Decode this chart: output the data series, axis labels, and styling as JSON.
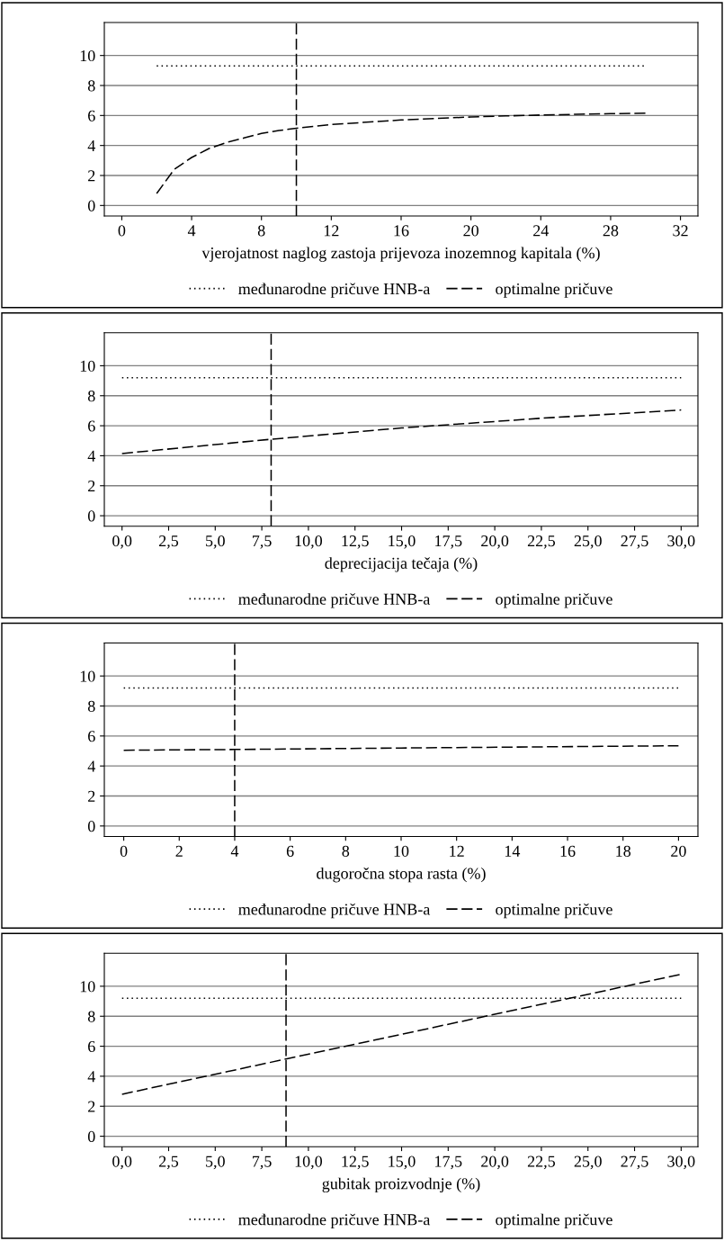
{
  "chart_data": [
    {
      "type": "line",
      "xlabel": "vjerojatnost naglog zastoja prijevoza inozemnog kapitala (%)",
      "xlim": [
        -1,
        33
      ],
      "xticks": [
        0,
        4,
        8,
        12,
        16,
        20,
        24,
        28,
        32
      ],
      "ylim": [
        -0.7,
        12.2
      ],
      "yticks": [
        0,
        2,
        4,
        6,
        8,
        10
      ],
      "grid": "y",
      "legend": "bottom",
      "series": [
        {
          "name": "međunarodne pričuve HNB-a",
          "color": "#000000",
          "line_style": "dotted",
          "x": [
            2,
            30
          ],
          "values": [
            9.3,
            9.3
          ]
        },
        {
          "name": "optimalne pričuve",
          "color": "#000000",
          "line_style": "dashed",
          "x": [
            2,
            3,
            4,
            5,
            6,
            7,
            8,
            9,
            10,
            12,
            14,
            16,
            18,
            20,
            22,
            24,
            26,
            28,
            30
          ],
          "values": [
            0.8,
            2.4,
            3.2,
            3.8,
            4.2,
            4.5,
            4.8,
            5.0,
            5.15,
            5.4,
            5.55,
            5.7,
            5.8,
            5.9,
            5.97,
            6.03,
            6.08,
            6.12,
            6.15
          ]
        }
      ],
      "ref_lines": [
        {
          "axis": "x",
          "value": 10,
          "color": "#000000",
          "line_style": "dashed"
        }
      ]
    },
    {
      "type": "line",
      "xlabel": "deprecijacija tečaja (%)",
      "xlim": [
        -0.95,
        30.9
      ],
      "xticks": [
        {
          "value": 0,
          "label": "0,0"
        },
        {
          "value": 2.5,
          "label": "2,5"
        },
        {
          "value": 5,
          "label": "5,0"
        },
        {
          "value": 7.5,
          "label": "7,5"
        },
        {
          "value": 10,
          "label": "10,0"
        },
        {
          "value": 12.5,
          "label": "12,5"
        },
        {
          "value": 15,
          "label": "15,0"
        },
        {
          "value": 17.5,
          "label": "17,5"
        },
        {
          "value": 20,
          "label": "20,0"
        },
        {
          "value": 22.5,
          "label": "22,5"
        },
        {
          "value": 25,
          "label": "25,0"
        },
        {
          "value": 27.5,
          "label": "27,5"
        },
        {
          "value": 30,
          "label": "30,0"
        }
      ],
      "ylim": [
        -0.7,
        12.2
      ],
      "yticks": [
        0,
        2,
        4,
        6,
        8,
        10
      ],
      "grid": "y",
      "legend": "bottom",
      "series": [
        {
          "name": "međunarodne pričuve HNB-a",
          "color": "#000000",
          "line_style": "dotted",
          "x": [
            0,
            30
          ],
          "values": [
            9.2,
            9.2
          ]
        },
        {
          "name": "optimalne pričuve",
          "color": "#000000",
          "line_style": "dashed",
          "x": [
            0,
            8,
            15,
            22.5,
            30
          ],
          "values": [
            4.15,
            5.1,
            5.85,
            6.5,
            7.05
          ]
        }
      ],
      "ref_lines": [
        {
          "axis": "x",
          "value": 8,
          "color": "#000000",
          "line_style": "dashed"
        }
      ]
    },
    {
      "type": "line",
      "xlabel": "dugoročna stopa rasta (%)",
      "xlim": [
        -0.7,
        20.7
      ],
      "xticks": [
        0,
        2,
        4,
        6,
        8,
        10,
        12,
        14,
        16,
        18,
        20
      ],
      "ylim": [
        -0.7,
        12.2
      ],
      "yticks": [
        0,
        2,
        4,
        6,
        8,
        10
      ],
      "grid": "y",
      "legend": "bottom",
      "series": [
        {
          "name": "međunarodne pričuve HNB-a",
          "color": "#000000",
          "line_style": "dotted",
          "x": [
            0,
            20
          ],
          "values": [
            9.2,
            9.2
          ]
        },
        {
          "name": "optimalne pričuve",
          "color": "#000000",
          "line_style": "dashed",
          "x": [
            0,
            4,
            10,
            20
          ],
          "values": [
            5.05,
            5.1,
            5.2,
            5.35
          ]
        }
      ],
      "ref_lines": [
        {
          "axis": "x",
          "value": 4,
          "color": "#000000",
          "line_style": "dashed"
        }
      ]
    },
    {
      "type": "line",
      "xlabel": "gubitak proizvodnje (%)",
      "xlim": [
        -0.95,
        30.9
      ],
      "xticks": [
        {
          "value": 0,
          "label": "0,0"
        },
        {
          "value": 2.5,
          "label": "2,5"
        },
        {
          "value": 5,
          "label": "5,0"
        },
        {
          "value": 7.5,
          "label": "7,5"
        },
        {
          "value": 10,
          "label": "10,0"
        },
        {
          "value": 12.5,
          "label": "12,5"
        },
        {
          "value": 15,
          "label": "15,0"
        },
        {
          "value": 17.5,
          "label": "17,5"
        },
        {
          "value": 20,
          "label": "20,0"
        },
        {
          "value": 22.5,
          "label": "22,5"
        },
        {
          "value": 25,
          "label": "25,0"
        },
        {
          "value": 27.5,
          "label": "27,5"
        },
        {
          "value": 30,
          "label": "30,0"
        }
      ],
      "ylim": [
        -0.7,
        12.2
      ],
      "yticks": [
        0,
        2,
        4,
        6,
        8,
        10
      ],
      "grid": "y",
      "legend": "bottom",
      "series": [
        {
          "name": "međunarodne pričuve HNB-a",
          "color": "#000000",
          "line_style": "dotted",
          "x": [
            0,
            30
          ],
          "values": [
            9.2,
            9.2
          ]
        },
        {
          "name": "optimalne pričuve",
          "color": "#000000",
          "line_style": "dashed",
          "x": [
            0,
            8.8,
            15,
            24.4,
            30
          ],
          "values": [
            2.8,
            5.15,
            6.8,
            9.3,
            10.8
          ]
        }
      ],
      "ref_lines": [
        {
          "axis": "x",
          "value": 8.8,
          "color": "#000000",
          "line_style": "dashed"
        }
      ]
    }
  ]
}
